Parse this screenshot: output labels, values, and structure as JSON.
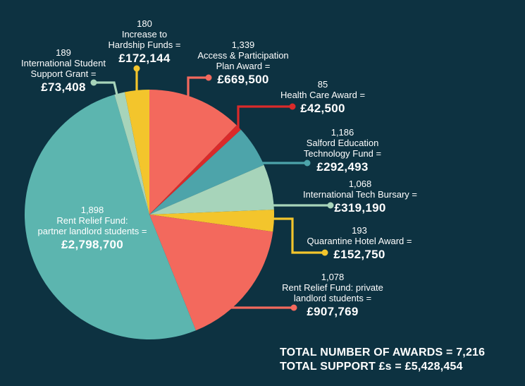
{
  "background_color": "#0d3241",
  "text_color": "#ffffff",
  "chart_data": {
    "type": "pie",
    "direction": "clockwise",
    "start_angle_deg": 0,
    "legend_position": "callouts-around-pie",
    "total_awards": "7,216",
    "total_support": "£5,428,454",
    "slices": [
      {
        "label": "Access & Participation Plan Award",
        "count": "1,339",
        "value": 669500,
        "amount": "£669,500",
        "color": "#f3695d"
      },
      {
        "label": "Health Care Award",
        "count": "85",
        "value": 42500,
        "amount": "£42,500",
        "color": "#da2a2a"
      },
      {
        "label": "Salford Education Technology Fund",
        "count": "1,186",
        "value": 292493,
        "amount": "£292,493",
        "color": "#4da4aa"
      },
      {
        "label": "International Tech Bursary",
        "count": "1,068",
        "value": 319190,
        "amount": "£319,190",
        "color": "#a7d4ba"
      },
      {
        "label": "Quarantine Hotel Award",
        "count": "193",
        "value": 152750,
        "amount": "£152,750",
        "color": "#f3c52c"
      },
      {
        "label": "Rent Relief Fund: private landlord students",
        "count": "1,078",
        "value": 907769,
        "amount": "£907,769",
        "color": "#f3695d"
      },
      {
        "label": "Rent Relief Fund: partner landlord students",
        "count": "1,898",
        "value": 2798700,
        "amount": "£2,798,700",
        "color": "#5cb5af"
      },
      {
        "label": "International Student Support Grant",
        "count": "189",
        "value": 73408,
        "amount": "£73,408",
        "color": "#a7d4ba"
      },
      {
        "label": "Increase to Hardship Funds",
        "count": "180",
        "value": 172144,
        "amount": "£172,144",
        "color": "#f3c52c"
      }
    ]
  },
  "callouts": [
    {
      "count": "180",
      "name_lines": [
        "Increase to",
        "Hardship Funds ="
      ],
      "amount": "£172,144"
    },
    {
      "count": "189",
      "name_lines": [
        "International Student",
        "Support Grant ="
      ],
      "amount": "£73,408"
    },
    {
      "count": "1,339",
      "name_lines": [
        "Access & Participation",
        "Plan Award ="
      ],
      "amount": "£669,500"
    },
    {
      "count": "85",
      "name_lines": [
        "Health Care Award ="
      ],
      "amount": "£42,500"
    },
    {
      "count": "1,186",
      "name_lines": [
        "Salford Education",
        "Technology Fund ="
      ],
      "amount": "£292,493"
    },
    {
      "count": "1,068",
      "name_lines": [
        "International Tech Bursary ="
      ],
      "amount": "£319,190"
    },
    {
      "count": "193",
      "name_lines": [
        "Quarantine Hotel Award ="
      ],
      "amount": "£152,750"
    },
    {
      "count": "1,078",
      "name_lines": [
        "Rent Relief Fund: private",
        "landlord students ="
      ],
      "amount": "£907,769"
    },
    {
      "count": "1,898",
      "name_lines": [
        "Rent Relief Fund:",
        "partner landlord students ="
      ],
      "amount": "£2,798,700"
    }
  ],
  "totals": {
    "awards_line": "TOTAL NUMBER OF AWARDS = 7,216",
    "support_line": "TOTAL SUPPORT £s = £5,428,454"
  }
}
